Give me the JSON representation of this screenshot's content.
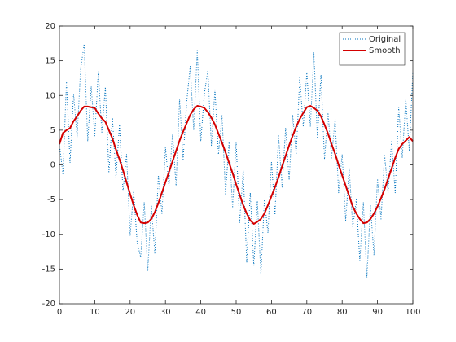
{
  "chart_data": {
    "type": "line",
    "x": [
      0,
      1,
      2,
      3,
      4,
      5,
      6,
      7,
      8,
      9,
      10,
      11,
      12,
      13,
      14,
      15,
      16,
      17,
      18,
      19,
      20,
      21,
      22,
      23,
      24,
      25,
      26,
      27,
      28,
      29,
      30,
      31,
      32,
      33,
      34,
      35,
      36,
      37,
      38,
      39,
      40,
      41,
      42,
      43,
      44,
      45,
      46,
      47,
      48,
      49,
      50,
      51,
      52,
      53,
      54,
      55,
      56,
      57,
      58,
      59,
      60,
      61,
      62,
      63,
      64,
      65,
      66,
      67,
      68,
      69,
      70,
      71,
      72,
      73,
      74,
      75,
      76,
      77,
      78,
      79,
      80,
      81,
      82,
      83,
      84,
      85,
      86,
      87,
      88,
      89,
      90,
      91,
      92,
      93,
      94,
      95,
      96,
      97,
      98,
      99,
      100
    ],
    "series": [
      {
        "name": "Original",
        "color": "#0072bd",
        "style": "dotted",
        "width": 1,
        "values": [
          3.0,
          -1.4,
          12.0,
          0.3,
          10.3,
          4.0,
          13.8,
          17.4,
          3.4,
          11.3,
          4.2,
          13.4,
          4.7,
          11.2,
          -1.0,
          6.8,
          -1.8,
          5.8,
          -3.8,
          1.5,
          -10.2,
          -3.8,
          -11.2,
          -13.3,
          -5.4,
          -15.3,
          -5.8,
          -12.8,
          -1.5,
          -7.0,
          2.5,
          -3.0,
          4.5,
          -3.0,
          9.5,
          0.8,
          9.0,
          14.2,
          5.0,
          16.5,
          3.4,
          10.2,
          13.6,
          2.8,
          10.8,
          1.5,
          7.2,
          -4.2,
          3.3,
          -6.2,
          3.2,
          -8.3,
          -0.8,
          -14.0,
          -4.0,
          -14.5,
          -5.2,
          -15.8,
          -5.0,
          -9.8,
          0.5,
          -7.2,
          4.2,
          -3.2,
          5.3,
          -2.2,
          7.2,
          1.5,
          12.6,
          5.5,
          13.3,
          5.5,
          16.2,
          3.8,
          13.0,
          0.8,
          7.5,
          1.0,
          6.6,
          -4.0,
          1.5,
          -8.0,
          -0.5,
          -9.0,
          -5.0,
          -13.8,
          -5.4,
          -16.3,
          -5.8,
          -13.0,
          -2.0,
          -7.8,
          1.5,
          -4.0,
          3.5,
          -4.0,
          8.3,
          1.0,
          9.5,
          2.0,
          13.4
        ]
      },
      {
        "name": "Smooth",
        "color": "#d40000",
        "style": "solid",
        "width": 2,
        "values": [
          3.0,
          4.6,
          5.0,
          5.3,
          6.3,
          7.0,
          7.8,
          8.4,
          8.4,
          8.3,
          8.2,
          7.4,
          6.7,
          6.2,
          5.0,
          3.8,
          2.2,
          0.8,
          -0.8,
          -2.5,
          -4.2,
          -5.8,
          -7.2,
          -8.3,
          -8.4,
          -8.3,
          -7.8,
          -6.8,
          -5.5,
          -4.0,
          -2.5,
          -1.0,
          0.5,
          2.0,
          3.5,
          4.8,
          6.0,
          7.2,
          8.0,
          8.5,
          8.4,
          8.2,
          7.6,
          6.8,
          5.8,
          4.5,
          3.2,
          1.8,
          0.3,
          -1.2,
          -2.8,
          -4.3,
          -5.8,
          -7.0,
          -8.0,
          -8.5,
          -8.2,
          -7.8,
          -7.0,
          -5.8,
          -4.5,
          -3.2,
          -1.8,
          -0.2,
          1.3,
          2.8,
          4.2,
          5.5,
          6.6,
          7.5,
          8.3,
          8.5,
          8.2,
          7.8,
          7.0,
          5.8,
          4.5,
          3.0,
          1.6,
          0.0,
          -1.5,
          -3.0,
          -4.5,
          -6.0,
          -7.0,
          -7.8,
          -8.4,
          -8.3,
          -7.8,
          -7.0,
          -6.0,
          -4.8,
          -3.5,
          -2.0,
          -0.5,
          1.0,
          2.3,
          3.0,
          3.5,
          4.0,
          3.4
        ]
      }
    ],
    "xlim": [
      0,
      100
    ],
    "xticks": [
      0,
      10,
      20,
      30,
      40,
      50,
      60,
      70,
      80,
      90,
      100
    ],
    "ylim": [
      -20,
      20
    ],
    "yticks": [
      -20,
      -15,
      -10,
      -5,
      0,
      5,
      10,
      15,
      20
    ],
    "grid": false,
    "legend": "northeast"
  }
}
